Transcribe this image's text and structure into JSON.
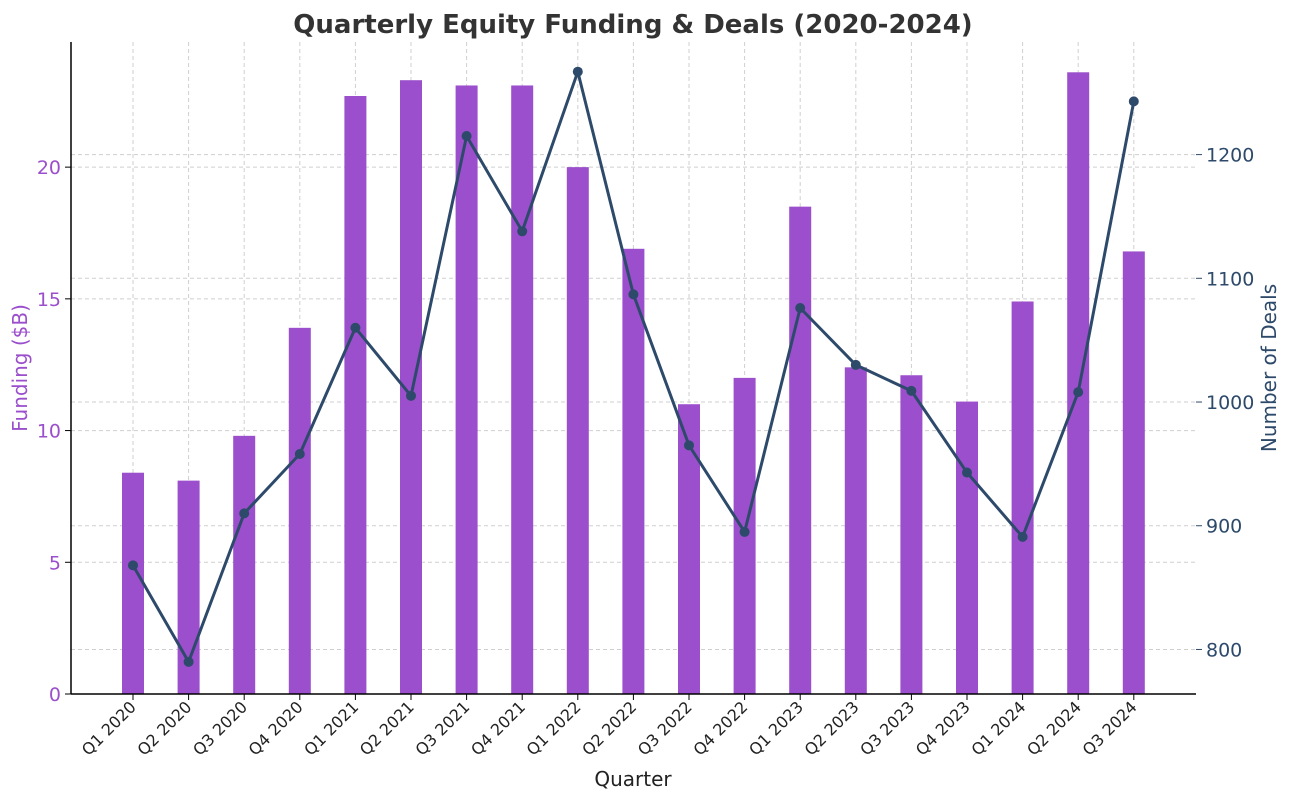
{
  "chart_data": {
    "type": "bar",
    "title": "Quarterly Equity Funding & Deals (2020-2024)",
    "xlabel": "Quarter",
    "categories": [
      "Q1 2020",
      "Q2 2020",
      "Q3 2020",
      "Q4 2020",
      "Q1 2021",
      "Q2 2021",
      "Q3 2021",
      "Q4 2021",
      "Q1 2022",
      "Q2 2022",
      "Q3 2022",
      "Q4 2022",
      "Q1 2023",
      "Q2 2023",
      "Q3 2023",
      "Q4 2023",
      "Q1 2024",
      "Q2 2024",
      "Q3 2024"
    ],
    "series": [
      {
        "name": "Funding ($B)",
        "type": "bar",
        "axis": "left",
        "color": "#9b4fcc",
        "values": [
          8.4,
          8.1,
          9.8,
          13.9,
          22.7,
          23.3,
          23.1,
          23.1,
          20.0,
          16.9,
          11.0,
          12.0,
          18.5,
          12.4,
          12.1,
          11.1,
          14.9,
          23.6,
          16.8
        ]
      },
      {
        "name": "Number of Deals",
        "type": "line",
        "axis": "right",
        "color": "#2e4a6b",
        "values": [
          868,
          790,
          910,
          958,
          1060,
          1005,
          1215,
          1138,
          1267,
          1087,
          965,
          895,
          1076,
          1030,
          1009,
          943,
          891,
          1008,
          1243
        ]
      }
    ],
    "left_axis": {
      "label": "Funding ($B)",
      "ylim": [
        0,
        24.75
      ],
      "ticks": [
        0,
        5,
        10,
        15,
        20
      ],
      "color": "#9b4fcc"
    },
    "right_axis": {
      "label": "Number of Deals",
      "ylim": [
        764,
        1291
      ],
      "ticks": [
        800,
        900,
        1000,
        1100,
        1200
      ],
      "color": "#2e4a6b"
    },
    "grid": true,
    "legend": "none"
  }
}
